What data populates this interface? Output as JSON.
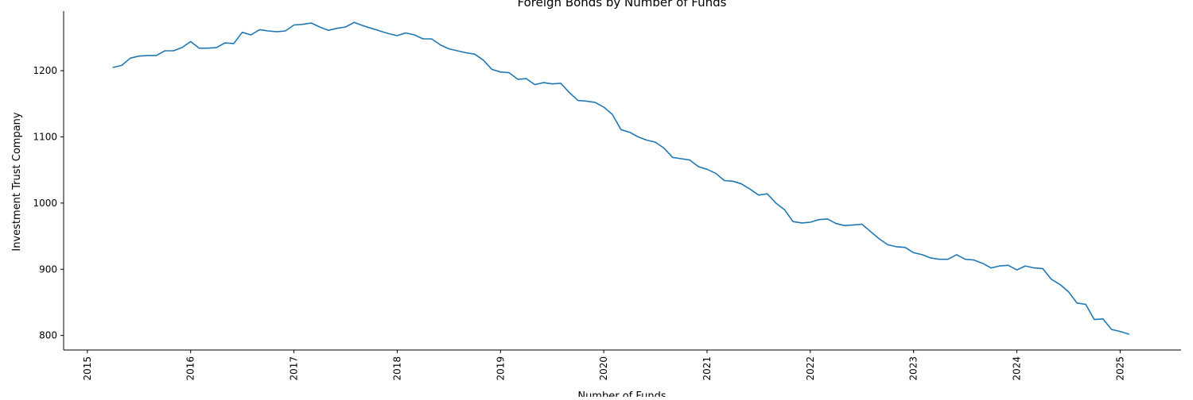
{
  "chart_data": {
    "type": "line",
    "title": "Foreign Bonds by Number of Funds",
    "xlabel": "Number of Funds",
    "ylabel": "Investment Trust Company",
    "xlim": [
      2014.77,
      2025.59
    ],
    "ylim": [
      778,
      1290
    ],
    "x_ticks": [
      "2015",
      "2016",
      "2017",
      "2018",
      "2019",
      "2020",
      "2021",
      "2022",
      "2023",
      "2024",
      "2025"
    ],
    "y_ticks": [
      "800",
      "900",
      "1000",
      "1100",
      "1200"
    ],
    "grid": false,
    "legend": "none",
    "line_color": "#1f77b4",
    "series": [
      {
        "x": [
          2015.25,
          2015.333,
          2015.417,
          2015.5,
          2015.583,
          2015.667,
          2015.75,
          2015.833,
          2015.917,
          2016.0,
          2016.083,
          2016.167,
          2016.25,
          2016.333,
          2016.417,
          2016.5,
          2016.583,
          2016.667,
          2016.75,
          2016.833,
          2016.917,
          2017.0,
          2017.083,
          2017.167,
          2017.25,
          2017.333,
          2017.417,
          2017.5,
          2017.583,
          2017.667,
          2017.75,
          2017.833,
          2017.917,
          2018.0,
          2018.083,
          2018.167,
          2018.25,
          2018.333,
          2018.417,
          2018.5,
          2018.583,
          2018.667,
          2018.75,
          2018.833,
          2018.917,
          2019.0,
          2019.083,
          2019.167,
          2019.25,
          2019.333,
          2019.417,
          2019.5,
          2019.583,
          2019.667,
          2019.75,
          2019.833,
          2019.917,
          2020.0,
          2020.083,
          2020.167,
          2020.25,
          2020.333,
          2020.417,
          2020.5,
          2020.583,
          2020.667,
          2020.75,
          2020.833,
          2020.917,
          2021.0,
          2021.083,
          2021.167,
          2021.25,
          2021.333,
          2021.417,
          2021.5,
          2021.583,
          2021.667,
          2021.75,
          2021.833,
          2021.917,
          2022.0,
          2022.083,
          2022.167,
          2022.25,
          2022.333,
          2022.417,
          2022.5,
          2022.583,
          2022.667,
          2022.75,
          2022.833,
          2022.917,
          2023.0,
          2023.083,
          2023.167,
          2023.25,
          2023.333,
          2023.417,
          2023.5,
          2023.583,
          2023.667,
          2023.75,
          2023.833,
          2023.917,
          2024.0,
          2024.083,
          2024.167,
          2024.25,
          2024.333,
          2024.417,
          2024.5,
          2024.583,
          2024.667,
          2024.75,
          2024.833,
          2024.917,
          2025.0,
          2025.083
        ],
        "y": [
          1205,
          1208,
          1219,
          1222,
          1223,
          1223,
          1230,
          1230,
          1235,
          1244,
          1234,
          1234,
          1235,
          1242,
          1241,
          1258,
          1254,
          1262,
          1260,
          1259,
          1260,
          1269,
          1270,
          1272,
          1266,
          1261,
          1264,
          1266,
          1273,
          1268,
          1264,
          1260,
          1256,
          1253,
          1257,
          1254,
          1248,
          1248,
          1239,
          1233,
          1230,
          1227,
          1225,
          1216,
          1202,
          1198,
          1197,
          1187,
          1188,
          1179,
          1182,
          1180,
          1181,
          1167,
          1155,
          1154,
          1152,
          1145,
          1134,
          1111,
          1107,
          1100,
          1095,
          1092,
          1083,
          1069,
          1067,
          1065,
          1055,
          1051,
          1045,
          1034,
          1033,
          1029,
          1021,
          1012,
          1014,
          1000,
          990,
          972,
          970,
          971,
          975,
          976,
          969,
          966,
          967,
          968,
          957,
          946,
          937,
          934,
          933,
          925,
          922,
          917,
          915,
          915,
          922,
          915,
          914,
          909,
          902,
          905,
          906,
          899,
          905,
          902,
          901,
          885,
          877,
          866,
          849,
          847,
          824,
          825,
          809,
          806,
          802
        ]
      }
    ]
  }
}
